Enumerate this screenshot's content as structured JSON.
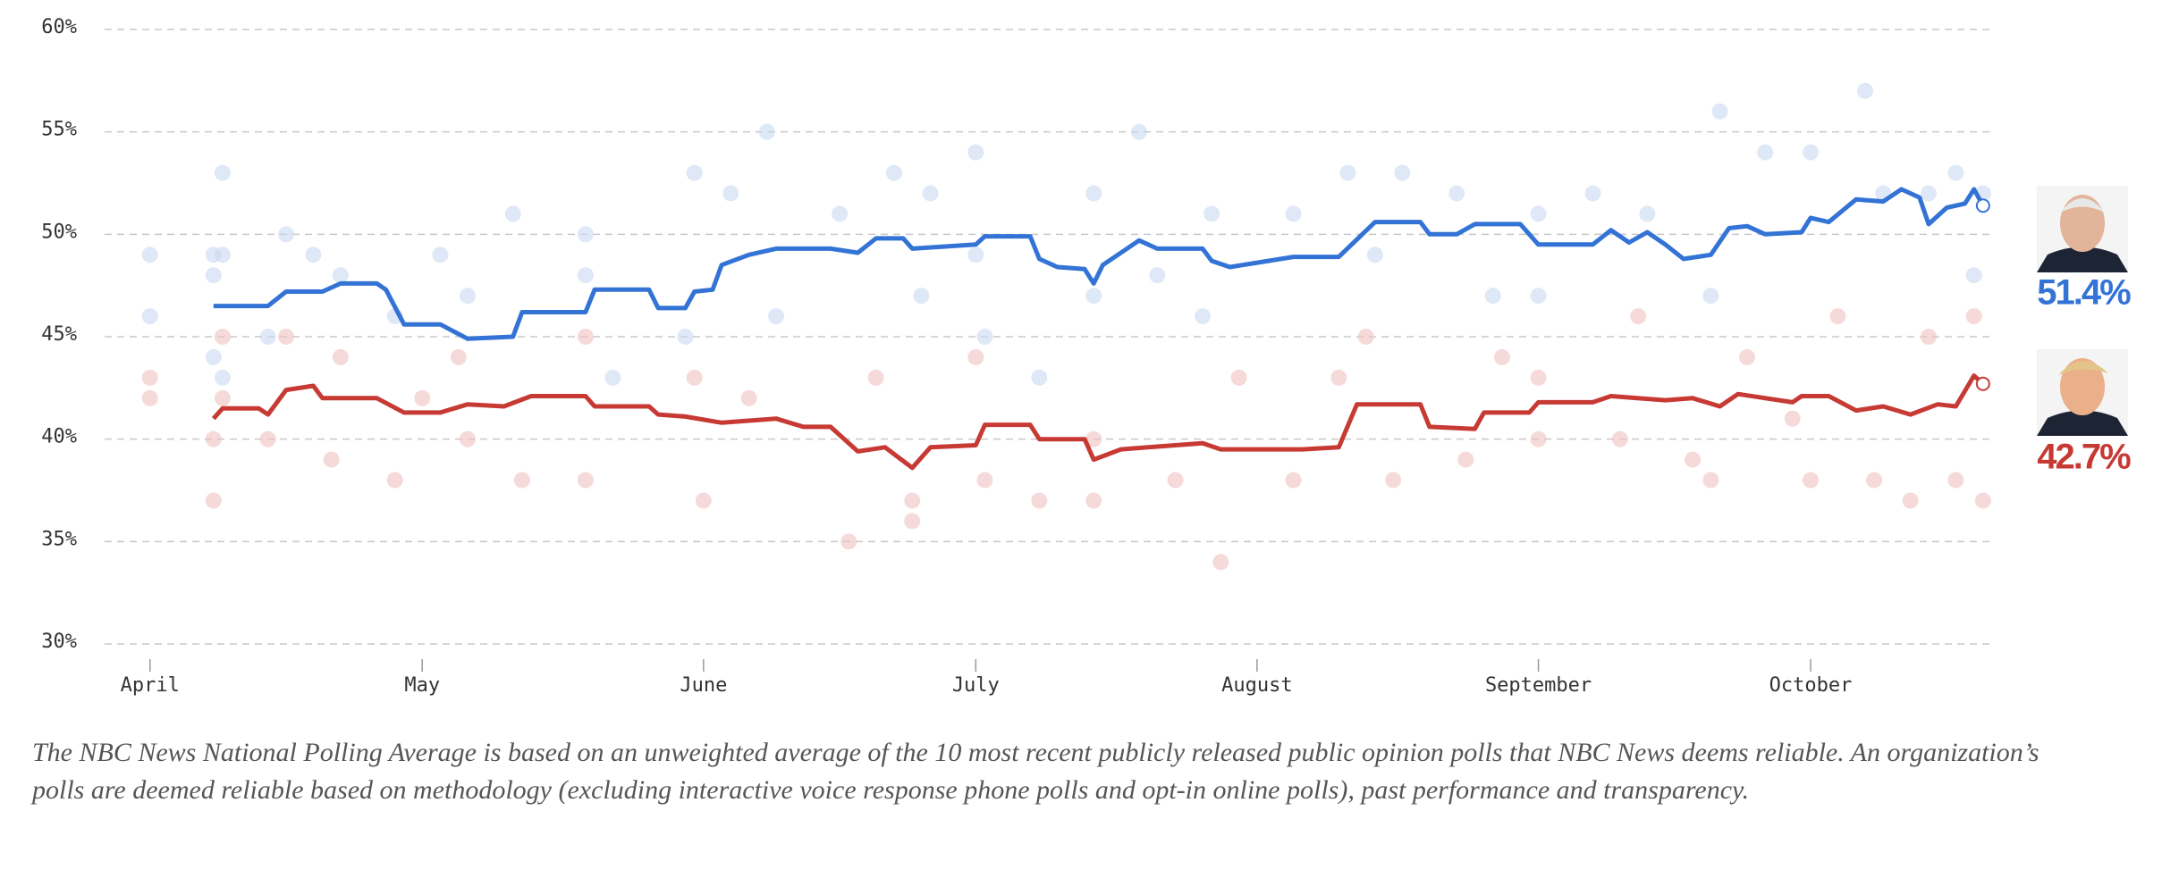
{
  "chart_data": {
    "type": "line",
    "xlim": [
      -5,
      203
    ],
    "xticks": [
      {
        "value": 0,
        "label": "April"
      },
      {
        "value": 30,
        "label": "May"
      },
      {
        "value": 61,
        "label": "June"
      },
      {
        "value": 91,
        "label": "July"
      },
      {
        "value": 122,
        "label": "August"
      },
      {
        "value": 153,
        "label": "September"
      },
      {
        "value": 183,
        "label": "October"
      }
    ],
    "ylim": [
      30,
      60
    ],
    "yticks": [
      {
        "value": 30,
        "label": "30%"
      },
      {
        "value": 35,
        "label": "35%"
      },
      {
        "value": 40,
        "label": "40%"
      },
      {
        "value": 45,
        "label": "45%"
      },
      {
        "value": 50,
        "label": "50%"
      },
      {
        "value": 55,
        "label": "55%"
      },
      {
        "value": 60,
        "label": "60%"
      }
    ],
    "grid": true,
    "series": [
      {
        "color": "#3373d6",
        "x": [
          7,
          13,
          15,
          19,
          21,
          25,
          26,
          28,
          32,
          35,
          40,
          41,
          48,
          49,
          55,
          56,
          59,
          60,
          62,
          63,
          66,
          69,
          75,
          78,
          80,
          83,
          84,
          91,
          92,
          97,
          98,
          100,
          103,
          104,
          105,
          109,
          111,
          116,
          117,
          119,
          126,
          131,
          135,
          140,
          141,
          144,
          146,
          151,
          153,
          159,
          161,
          163,
          165,
          167,
          169,
          172,
          174,
          176,
          178,
          182,
          183,
          185,
          188,
          191,
          193,
          195,
          196,
          198,
          200,
          201,
          202
        ],
        "values": [
          46.5,
          46.5,
          47.2,
          47.2,
          47.6,
          47.6,
          47.3,
          45.6,
          45.6,
          44.9,
          45.0,
          46.2,
          46.2,
          47.3,
          47.3,
          46.4,
          46.4,
          47.2,
          47.3,
          48.5,
          49.0,
          49.3,
          49.3,
          49.1,
          49.8,
          49.8,
          49.3,
          49.5,
          49.9,
          49.9,
          48.8,
          48.4,
          48.3,
          47.6,
          48.5,
          49.7,
          49.3,
          49.3,
          48.7,
          48.4,
          48.9,
          48.9,
          50.6,
          50.6,
          50.0,
          50.0,
          50.5,
          50.5,
          49.5,
          49.5,
          50.2,
          49.6,
          50.1,
          49.5,
          48.8,
          49.0,
          50.3,
          50.4,
          50.0,
          50.1,
          50.8,
          50.6,
          51.7,
          51.6,
          52.2,
          51.8,
          50.5,
          51.3,
          51.5,
          52.2,
          51.4
        ],
        "value_labels": [
          null,
          null,
          null,
          null,
          null,
          null,
          null,
          null,
          null,
          null,
          null,
          null,
          null,
          null,
          null,
          null,
          null,
          null,
          null,
          null,
          null,
          null,
          null,
          null,
          null,
          null,
          null,
          null,
          null,
          null,
          null,
          null,
          null,
          null,
          null,
          null,
          null,
          null,
          null,
          null,
          null,
          null,
          null,
          null,
          null,
          null,
          null,
          null,
          null,
          null,
          null,
          null,
          null,
          null,
          null,
          null,
          null,
          null,
          null,
          null,
          null,
          null,
          null,
          null,
          null,
          null,
          null,
          null,
          null,
          null,
          "51.4%"
        ]
      },
      {
        "color": "#c73a34",
        "x": [
          7,
          8,
          12,
          13,
          15,
          18,
          19,
          25,
          28,
          32,
          35,
          39,
          42,
          48,
          49,
          55,
          56,
          59,
          63,
          69,
          72,
          75,
          78,
          81,
          84,
          86,
          91,
          92,
          97,
          98,
          103,
          104,
          107,
          110,
          116,
          118,
          127,
          131,
          133,
          140,
          141,
          146,
          147,
          152,
          153,
          159,
          161,
          167,
          170,
          173,
          175,
          181,
          182,
          185,
          188,
          191,
          194,
          197,
          199,
          201,
          202
        ],
        "values": [
          41.0,
          41.5,
          41.5,
          41.2,
          42.4,
          42.6,
          42.0,
          42.0,
          41.3,
          41.3,
          41.7,
          41.6,
          42.1,
          42.1,
          41.6,
          41.6,
          41.2,
          41.1,
          40.8,
          41.0,
          40.6,
          40.6,
          39.4,
          39.6,
          38.6,
          39.6,
          39.7,
          40.7,
          40.7,
          40.0,
          40.0,
          39.0,
          39.5,
          39.6,
          39.8,
          39.5,
          39.5,
          39.6,
          41.7,
          41.7,
          40.6,
          40.5,
          41.3,
          41.3,
          41.8,
          41.8,
          42.1,
          41.9,
          42.0,
          41.6,
          42.2,
          41.8,
          42.1,
          42.1,
          41.4,
          41.6,
          41.2,
          41.7,
          41.6,
          43.1,
          42.7
        ],
        "value_labels": [
          null,
          null,
          null,
          null,
          null,
          null,
          null,
          null,
          null,
          null,
          null,
          null,
          null,
          null,
          null,
          null,
          null,
          null,
          null,
          null,
          null,
          null,
          null,
          null,
          null,
          null,
          null,
          null,
          null,
          null,
          null,
          null,
          null,
          null,
          null,
          null,
          null,
          null,
          null,
          null,
          null,
          null,
          null,
          null,
          null,
          null,
          null,
          null,
          null,
          null,
          null,
          null,
          null,
          null,
          null,
          null,
          null,
          null,
          null,
          null,
          "42.7%"
        ]
      }
    ],
    "polls": [
      {
        "type": "scatter",
        "color": "#c9d9f0",
        "x": [
          0,
          0,
          7,
          7,
          7,
          8,
          8,
          8,
          13,
          15,
          18,
          21,
          27,
          32,
          35,
          40,
          48,
          48,
          51,
          59,
          60,
          64,
          68,
          69,
          76,
          82,
          85,
          86,
          91,
          91,
          92,
          98,
          104,
          104,
          109,
          111,
          116,
          117,
          126,
          132,
          135,
          138,
          144,
          148,
          153,
          153,
          159,
          165,
          172,
          173,
          178,
          183,
          189,
          191,
          196,
          199,
          201,
          202
        ],
        "values": [
          49,
          46,
          49,
          48,
          44,
          53,
          49,
          43,
          45,
          50,
          49,
          48,
          46,
          49,
          47,
          51,
          50,
          48,
          43,
          45,
          53,
          52,
          55,
          46,
          51,
          53,
          47,
          52,
          54,
          49,
          45,
          43,
          52,
          47,
          55,
          48,
          46,
          51,
          51,
          53,
          49,
          53,
          52,
          47,
          51,
          47,
          52,
          51,
          47,
          56,
          54,
          54,
          57,
          52,
          52,
          53,
          48,
          52
        ]
      },
      {
        "type": "scatter",
        "color": "#efc2bf",
        "x": [
          0,
          0,
          7,
          7,
          8,
          8,
          13,
          15,
          20,
          21,
          27,
          30,
          34,
          35,
          41,
          48,
          48,
          60,
          61,
          66,
          77,
          80,
          84,
          84,
          91,
          92,
          98,
          104,
          104,
          113,
          118,
          120,
          126,
          131,
          134,
          137,
          145,
          149,
          153,
          153,
          162,
          164,
          170,
          172,
          176,
          181,
          183,
          186,
          190,
          194,
          196,
          199,
          201,
          202
        ],
        "values": [
          43,
          42,
          37,
          40,
          45,
          42,
          40,
          45,
          39,
          44,
          38,
          42,
          44,
          40,
          38,
          45,
          38,
          43,
          37,
          42,
          35,
          43,
          37,
          36,
          44,
          38,
          37,
          37,
          40,
          38,
          34,
          43,
          38,
          43,
          45,
          38,
          39,
          44,
          43,
          40,
          40,
          46,
          39,
          38,
          44,
          41,
          38,
          46,
          38,
          37,
          45,
          38,
          46,
          37
        ]
      }
    ]
  },
  "footnote": "The NBC News National Polling Average is based on an unweighted average of the 10 most recent publicly released public opinion polls that NBC News deems reliable. An organization’s polls are deemed reliable based on methodology (excluding interactive voice response phone polls and opt-in online polls), past performance and transparency."
}
